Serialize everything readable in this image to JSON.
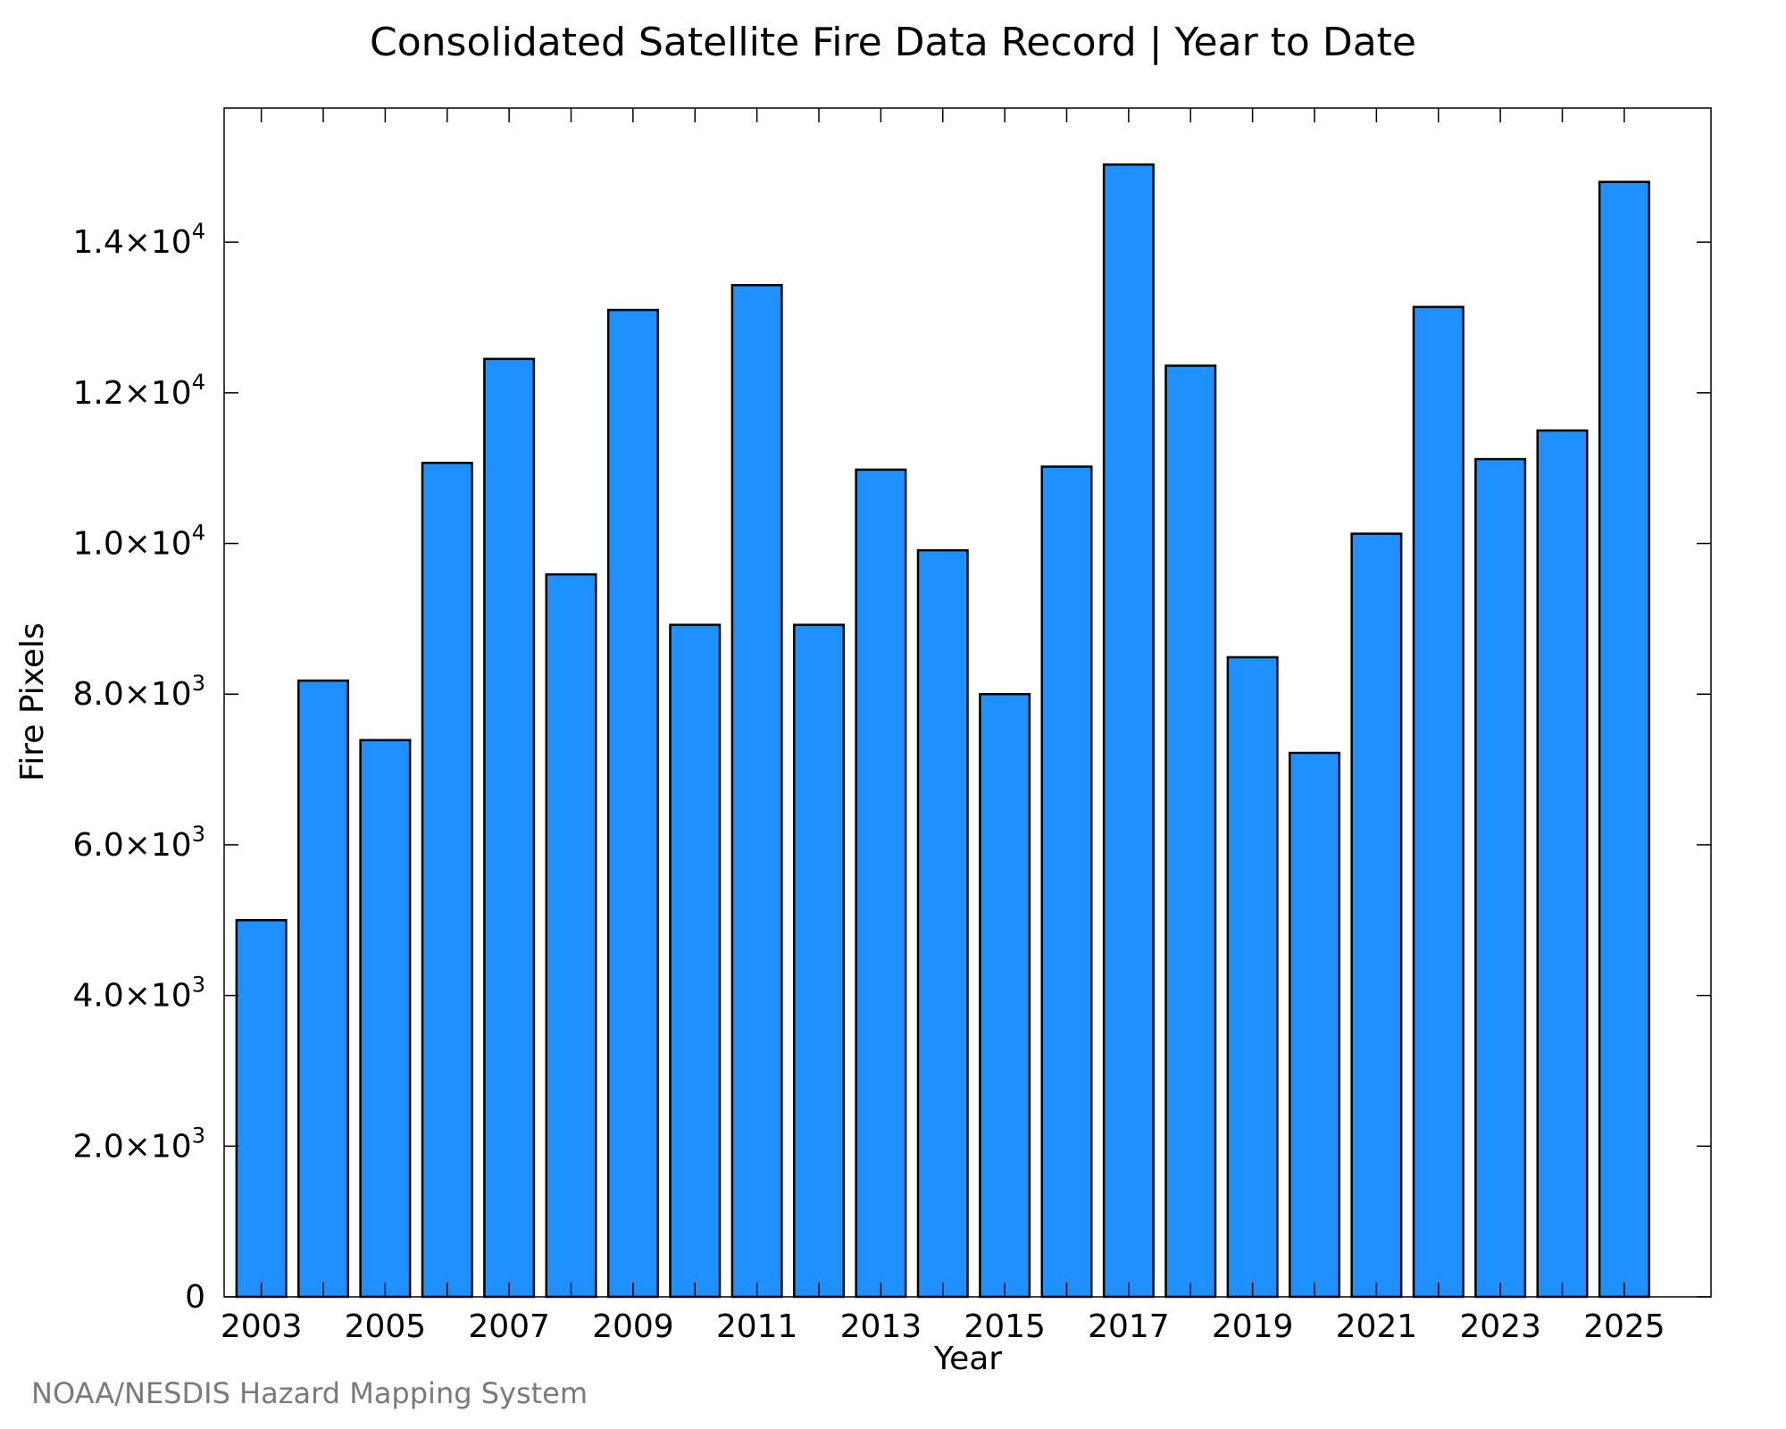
{
  "chart_data": {
    "type": "bar",
    "title": "Consolidated Satellite Fire Data Record | Year to Date",
    "xlabel": "Year",
    "ylabel": "Fire Pixels",
    "categories": [
      "2003",
      "2004",
      "2005",
      "2006",
      "2007",
      "2008",
      "2009",
      "2010",
      "2011",
      "2012",
      "2013",
      "2014",
      "2015",
      "2016",
      "2017",
      "2018",
      "2019",
      "2020",
      "2021",
      "2022",
      "2023",
      "2024",
      "2025"
    ],
    "values": [
      5000,
      8180,
      7390,
      11070,
      12450,
      9590,
      13100,
      8920,
      13430,
      8920,
      10980,
      9910,
      8000,
      11020,
      15030,
      12360,
      8490,
      7220,
      10130,
      13140,
      11120,
      11500,
      14800
    ],
    "x_tick_labels": [
      "2003",
      "2005",
      "2007",
      "2009",
      "2011",
      "2013",
      "2015",
      "2017",
      "2019",
      "2021",
      "2023",
      "2025"
    ],
    "y_ticks": [
      {
        "value": 0,
        "mantissa": "0",
        "exponent": ""
      },
      {
        "value": 2000,
        "mantissa": "2.0×10",
        "exponent": "3"
      },
      {
        "value": 4000,
        "mantissa": "4.0×10",
        "exponent": "3"
      },
      {
        "value": 6000,
        "mantissa": "6.0×10",
        "exponent": "3"
      },
      {
        "value": 8000,
        "mantissa": "8.0×10",
        "exponent": "3"
      },
      {
        "value": 10000,
        "mantissa": "1.0×10",
        "exponent": "4"
      },
      {
        "value": 12000,
        "mantissa": "1.2×10",
        "exponent": "4"
      },
      {
        "value": 14000,
        "mantissa": "1.4×10",
        "exponent": "4"
      }
    ],
    "ylim": [
      0,
      15780
    ],
    "xlim": [
      2002.4,
      2026.4
    ],
    "grid": false,
    "bar_color": "#1e90ff",
    "bar_edge_color": "#000000"
  },
  "credit": "NOAA/NESDIS Hazard Mapping System"
}
